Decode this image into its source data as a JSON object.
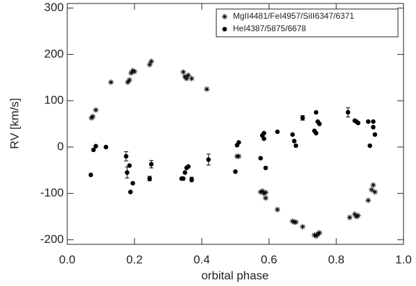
{
  "chart_data": {
    "type": "scatter",
    "xlabel": "orbital phase",
    "ylabel": "RV [km/s]",
    "xlim": [
      0,
      1
    ],
    "ylim": [
      -210,
      310
    ],
    "xticks": [
      {
        "value": 0,
        "label": "0.0"
      },
      {
        "value": 0.2,
        "label": "0.2"
      },
      {
        "value": 0.4,
        "label": "0.4"
      },
      {
        "value": 0.6,
        "label": "0.6"
      },
      {
        "value": 0.8,
        "label": "0.8"
      },
      {
        "value": 1,
        "label": "1.0"
      }
    ],
    "yticks": [
      -200,
      -100,
      0,
      100,
      200,
      300
    ],
    "legend": "upper right",
    "series": [
      {
        "name": "MgII4481/FeI4957/SiII6347/6371",
        "color": "#000000",
        "marker": "asterisk",
        "x": [
          0.072,
          0.076,
          0.085,
          0.13,
          0.18,
          0.185,
          0.19,
          0.195,
          0.2,
          0.245,
          0.25,
          0.345,
          0.35,
          0.355,
          0.36,
          0.37,
          0.415,
          0.505,
          0.51,
          0.575,
          0.58,
          0.585,
          0.59,
          0.59,
          0.625,
          0.67,
          0.675,
          0.68,
          0.7,
          0.735,
          0.74,
          0.745,
          0.75,
          0.84,
          0.855,
          0.86,
          0.865,
          0.895,
          0.905,
          0.91,
          0.915
        ],
        "values": [
          63,
          66,
          80,
          140,
          140,
          145,
          160,
          165,
          163,
          178,
          185,
          162,
          152,
          148,
          155,
          148,
          125,
          -20,
          -20,
          -97,
          -95,
          -100,
          -98,
          -110,
          -135,
          -160,
          -162,
          -162,
          -172,
          -190,
          -192,
          -188,
          -185,
          -152,
          -145,
          -150,
          -148,
          -115,
          -92,
          -82,
          -97
        ],
        "errors": [
          null,
          null,
          null,
          null,
          null,
          null,
          null,
          null,
          null,
          null,
          null,
          null,
          null,
          null,
          null,
          null,
          null,
          null,
          null,
          null,
          null,
          null,
          null,
          null,
          null,
          null,
          null,
          null,
          null,
          null,
          null,
          null,
          null,
          null,
          null,
          null,
          null,
          null,
          null,
          null,
          null
        ]
      },
      {
        "name": "HeI4387/5875/6678",
        "color": "#000000",
        "marker": "circle",
        "x": [
          0.07,
          0.078,
          0.085,
          0.115,
          0.175,
          0.178,
          0.185,
          0.188,
          0.195,
          0.245,
          0.25,
          0.34,
          0.345,
          0.35,
          0.355,
          0.36,
          0.37,
          0.42,
          0.5,
          0.505,
          0.51,
          0.575,
          0.58,
          0.585,
          0.585,
          0.59,
          0.625,
          0.67,
          0.675,
          0.68,
          0.7,
          0.735,
          0.74,
          0.74,
          0.745,
          0.75,
          0.835,
          0.855,
          0.86,
          0.865,
          0.895,
          0.9,
          0.91,
          0.91,
          0.915
        ],
        "values": [
          -60,
          -6,
          2,
          0,
          -20,
          -55,
          -40,
          -97,
          -78,
          -68,
          -37,
          -68,
          -68,
          -55,
          -45,
          -42,
          -70,
          -27,
          -53,
          4,
          10,
          -24,
          25,
          30,
          18,
          -45,
          33,
          27,
          13,
          3,
          63,
          35,
          30,
          75,
          55,
          50,
          75,
          57,
          55,
          52,
          55,
          3,
          55,
          43,
          27
        ],
        "errors": [
          null,
          null,
          null,
          null,
          10,
          12,
          null,
          null,
          null,
          5,
          8,
          null,
          null,
          null,
          null,
          null,
          5,
          12,
          null,
          null,
          null,
          null,
          null,
          null,
          null,
          null,
          null,
          null,
          null,
          null,
          5,
          null,
          null,
          null,
          null,
          null,
          10,
          null,
          null,
          null,
          null,
          null,
          null,
          null,
          null
        ]
      }
    ]
  }
}
